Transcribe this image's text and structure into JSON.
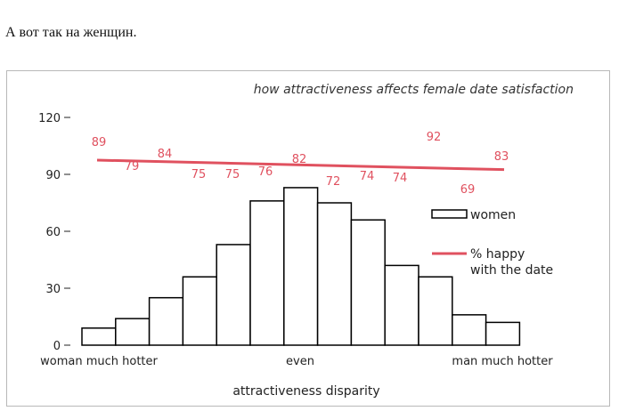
{
  "caption": "А вот так на женщин.",
  "colors": {
    "line": "#e0515f",
    "label": "#e0515f",
    "bar_stroke": "#000000",
    "bar_fill": "#ffffff"
  },
  "chart_data": {
    "type": "bar",
    "title": "how attractiveness affects female date satisfaction",
    "xlabel": "attractiveness disparity",
    "ylabel": "",
    "ylim": [
      0,
      120
    ],
    "yticks": [
      0,
      30,
      60,
      90,
      120
    ],
    "x_tick_labels": {
      "left": "woman much hotter",
      "center": "even",
      "right": "man much hotter"
    },
    "series": [
      {
        "name": "women",
        "type": "bar",
        "values": [
          9,
          14,
          25,
          36,
          53,
          76,
          83,
          75,
          66,
          42,
          36,
          16,
          12
        ]
      },
      {
        "name": "% happy with the date",
        "type": "trend_line",
        "start": 97.5,
        "end": 92.5
      }
    ],
    "point_labels": [
      89,
      79,
      84,
      75,
      75,
      76,
      82,
      72,
      74,
      74,
      92,
      69,
      83
    ],
    "legend": [
      "women",
      "% happy with the date"
    ],
    "legend_position": "right",
    "grid": false
  }
}
